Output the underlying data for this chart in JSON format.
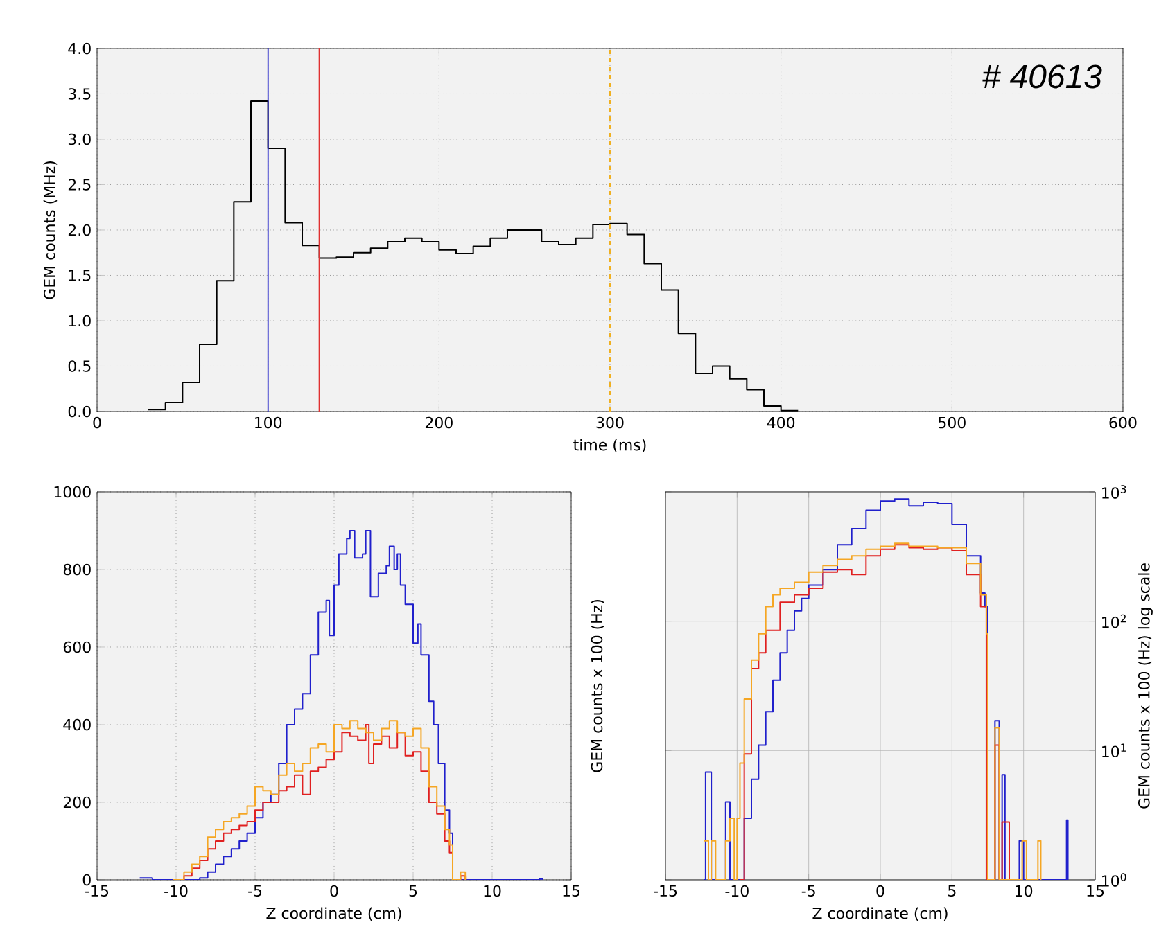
{
  "chart_data": [
    {
      "type": "histogram",
      "xlabel": "time (ms)",
      "ylabel": "GEM counts (MHz)",
      "color": "#000000",
      "bins": [
        30,
        40,
        50,
        60,
        70,
        80,
        90,
        100,
        110,
        120,
        130,
        140,
        150,
        160,
        170,
        180,
        190,
        200,
        210,
        220,
        230,
        240,
        250,
        260,
        270,
        280,
        290,
        300,
        310,
        320,
        330,
        340,
        350,
        360,
        370,
        380,
        390,
        400,
        410
      ],
      "values": [
        0.02,
        0.1,
        0.32,
        0.74,
        1.44,
        2.31,
        3.42,
        2.9,
        2.08,
        1.83,
        1.69,
        1.7,
        1.75,
        1.8,
        1.87,
        1.91,
        1.87,
        1.78,
        1.74,
        1.82,
        1.91,
        2.0,
        2.0,
        1.87,
        1.84,
        1.91,
        2.06,
        2.07,
        1.95,
        1.63,
        1.34,
        0.86,
        0.42,
        0.5,
        0.36,
        0.24,
        0.06,
        0.01
      ],
      "xlim": [
        0,
        600
      ],
      "xticks": [
        0,
        100,
        200,
        300,
        400,
        500,
        600
      ],
      "ylim": [
        0,
        4.0
      ],
      "yticks": [
        {
          "value": 0,
          "label": "0.0"
        },
        {
          "value": 0.5,
          "label": "0.5"
        },
        {
          "value": 1,
          "label": "1.0"
        },
        {
          "value": 1.5,
          "label": "1.5"
        },
        {
          "value": 2,
          "label": "2.0"
        },
        {
          "value": 2.5,
          "label": "2.5"
        },
        {
          "value": 3,
          "label": "3.0"
        },
        {
          "value": 3.5,
          "label": "3.5"
        },
        {
          "value": 4,
          "label": "4.0"
        }
      ],
      "grid": true,
      "ref_lines": [
        {
          "axis": "x",
          "value": 100,
          "color": "#3333cc"
        },
        {
          "axis": "x",
          "value": 130,
          "color": "#e03030"
        },
        {
          "axis": "x",
          "value": 300,
          "color": "#f0b020",
          "line_style": "dashed"
        }
      ],
      "annotations": [
        "# 40613"
      ]
    },
    {
      "type": "step",
      "xlabel": "Z coordinate (cm)",
      "ylabel": "GEM counts x 100 (Hz)",
      "xlim": [
        -15,
        15
      ],
      "xticks": [
        -15,
        -10,
        -5,
        0,
        5,
        10,
        15
      ],
      "ylim": [
        0,
        1000
      ],
      "yticks": [
        0,
        200,
        400,
        600,
        800,
        1000
      ],
      "grid": true,
      "series": [
        {
          "color": "#2020cc",
          "x": [
            -12.3,
            -12,
            -11.5,
            -9,
            -8.5,
            -8,
            -7.5,
            -7,
            -6.5,
            -6,
            -5.5,
            -5,
            -4.5,
            -4,
            -3.5,
            -3,
            -2.5,
            -2,
            -1.5,
            -1,
            -0.5,
            -0.3,
            0,
            0.3,
            0.8,
            1,
            1.3,
            1.8,
            2,
            2.3,
            2.8,
            3.3,
            3.5,
            3.8,
            4,
            4.2,
            4.5,
            5,
            5.3,
            5.5,
            6,
            6.3,
            6.6,
            7,
            7.3,
            7.5,
            13,
            13.2
          ],
          "values": [
            5,
            5,
            0,
            0,
            5,
            20,
            40,
            60,
            80,
            100,
            120,
            160,
            200,
            220,
            300,
            400,
            440,
            480,
            580,
            690,
            720,
            630,
            760,
            840,
            880,
            900,
            830,
            840,
            900,
            730,
            790,
            810,
            860,
            800,
            840,
            760,
            710,
            610,
            660,
            580,
            460,
            400,
            300,
            180,
            120,
            0,
            2,
            0
          ]
        },
        {
          "color": "#e02020",
          "x": [
            -10,
            -9.5,
            -9,
            -8.5,
            -8,
            -7.5,
            -7,
            -6.5,
            -6,
            -5.5,
            -5,
            -4.5,
            -4,
            -3.5,
            -3,
            -2.5,
            -2,
            -1.5,
            -1,
            -0.5,
            0,
            0.5,
            1,
            1.5,
            2,
            2.2,
            2.5,
            3,
            3.5,
            4,
            4.5,
            5,
            5.5,
            6,
            6.5,
            7,
            7.3,
            7.5,
            8,
            8.3
          ],
          "values": [
            0,
            10,
            30,
            50,
            80,
            100,
            120,
            130,
            140,
            150,
            180,
            200,
            200,
            230,
            240,
            270,
            220,
            280,
            290,
            310,
            330,
            380,
            370,
            360,
            400,
            300,
            350,
            370,
            340,
            380,
            320,
            330,
            280,
            200,
            170,
            100,
            70,
            0,
            10,
            0
          ]
        },
        {
          "color": "#f5a623",
          "x": [
            -10.2,
            -9.5,
            -9,
            -8.5,
            -8,
            -7.5,
            -7,
            -6.5,
            -6,
            -5.5,
            -5,
            -4.5,
            -4,
            -3.5,
            -3,
            -2.5,
            -2,
            -1.5,
            -1,
            -0.5,
            0,
            0.5,
            1,
            1.5,
            2,
            2.5,
            3,
            3.5,
            4,
            4.5,
            5,
            5.5,
            6,
            6.5,
            7,
            7.3,
            7.5,
            8,
            8.3
          ],
          "values": [
            0,
            20,
            40,
            60,
            110,
            130,
            150,
            160,
            170,
            190,
            240,
            230,
            220,
            270,
            300,
            280,
            300,
            340,
            350,
            330,
            400,
            390,
            410,
            390,
            380,
            360,
            390,
            410,
            380,
            370,
            390,
            340,
            240,
            190,
            130,
            90,
            0,
            20,
            0
          ]
        }
      ]
    },
    {
      "type": "step",
      "xlabel": "Z coordinate (cm)",
      "ylabel": "GEM counts x 100 (Hz) log scale",
      "log": "y",
      "xlim": [
        -15,
        15
      ],
      "xticks": [
        -15,
        -10,
        -5,
        0,
        5,
        10,
        15
      ],
      "ylim": [
        1,
        1000
      ],
      "yticks": [
        {
          "value": 1,
          "label": "10$^{0}$"
        },
        {
          "value": 10,
          "label": "10$^{1}$"
        },
        {
          "value": 100,
          "label": "10$^{2}$"
        },
        {
          "value": 1000,
          "label": "10$^{3}$"
        }
      ],
      "grid": true,
      "series": [
        {
          "color": "#2020cc",
          "x": [
            -12.3,
            -12.2,
            -11.8,
            -10.8,
            -10.5,
            -9.5,
            -9,
            -8.5,
            -8,
            -7.5,
            -7,
            -6.5,
            -6,
            -5.5,
            -5,
            -4,
            -3,
            -2,
            -1,
            0,
            1,
            2,
            3,
            4,
            5,
            6,
            7,
            7.3,
            7.5,
            8,
            8.3,
            8.5,
            8.7,
            9.7,
            10,
            13,
            13.1
          ],
          "values": [
            1,
            6.8,
            1,
            4,
            1,
            3,
            6,
            11,
            20,
            35,
            57,
            85,
            120,
            150,
            190,
            250,
            390,
            520,
            720,
            850,
            880,
            780,
            830,
            810,
            560,
            320,
            165,
            130,
            1,
            17,
            1,
            6.5,
            1,
            2,
            1,
            2.9,
            1
          ]
        },
        {
          "color": "#e02020",
          "x": [
            -9.8,
            -9.5,
            -9,
            -8.5,
            -8,
            -7,
            -6,
            -5,
            -4,
            -3,
            -2,
            -1,
            0,
            1,
            2,
            3,
            4,
            5,
            6,
            7,
            7.4,
            8,
            8.3,
            8.5,
            9
          ],
          "values": [
            1,
            9.4,
            43,
            57,
            85,
            140,
            160,
            180,
            240,
            250,
            230,
            320,
            360,
            390,
            370,
            360,
            370,
            350,
            230,
            130,
            1,
            11,
            1,
            2.8,
            1
          ]
        },
        {
          "color": "#f5a623",
          "x": [
            -12.3,
            -12,
            -11.8,
            -11.5,
            -10.8,
            -10.5,
            -10.2,
            -10,
            -9.8,
            -9.5,
            -9,
            -8.5,
            -8,
            -7.5,
            -7,
            -6,
            -5,
            -4,
            -3,
            -2,
            -1,
            0,
            1,
            2,
            3,
            4,
            5,
            6,
            7,
            7.4,
            7.5,
            8,
            8.3,
            9.9,
            10.2,
            11,
            11.2
          ],
          "values": [
            2,
            1,
            2,
            1,
            2,
            3,
            1,
            3,
            8,
            25,
            50,
            80,
            130,
            160,
            180,
            200,
            240,
            270,
            300,
            320,
            360,
            380,
            400,
            380,
            380,
            370,
            370,
            280,
            160,
            80,
            1,
            15,
            1,
            2,
            1,
            2,
            1
          ]
        }
      ]
    }
  ]
}
